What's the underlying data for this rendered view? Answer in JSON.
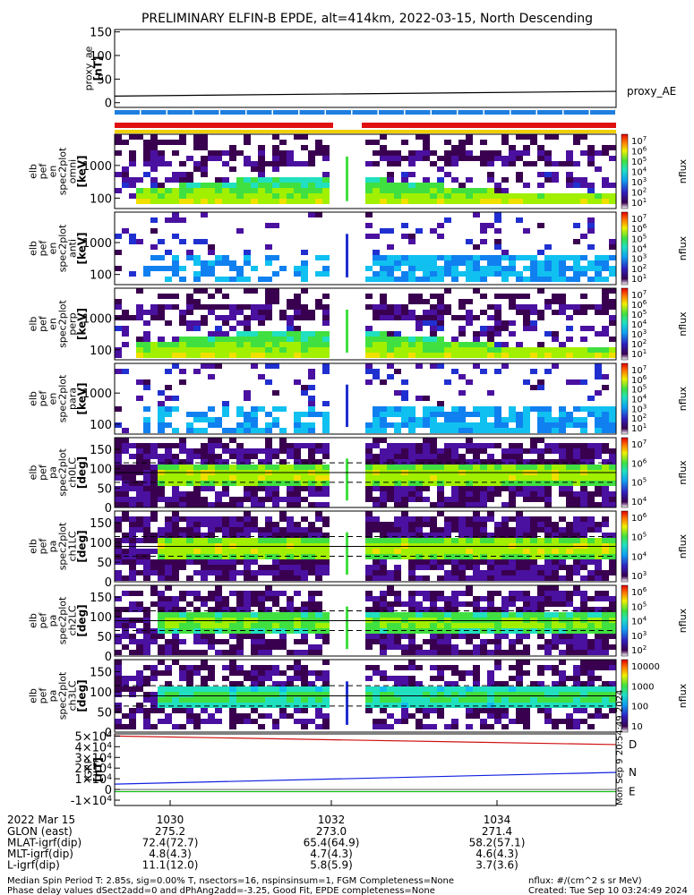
{
  "title": "PRELIMINARY ELFIN-B EPDE, alt=414km, 2022-03-15, North Descending",
  "chart_data": [
    {
      "type": "line",
      "panel": "proxy_ae",
      "ylabel_lines": [
        "proxy_ae",
        "[nT]"
      ],
      "yticks": [
        "150",
        "100",
        "50",
        "0"
      ],
      "ylim": [
        -10,
        155
      ],
      "x": [
        1029,
        1035.8
      ],
      "series": [
        {
          "name": "proxy_AE",
          "values": [
            14,
            24
          ],
          "color": "#000000"
        }
      ]
    },
    {
      "type": "heatmap",
      "panel": "en-omni",
      "ylabel_lines": [
        "elb",
        "pef",
        "en",
        "spec2plot",
        "omni",
        "[keV]"
      ],
      "yticks": [
        "1000",
        "100"
      ],
      "zlabel": "nflux",
      "cbar_ticks": [
        "10^7",
        "10^6",
        "10^5",
        "10^4",
        "10^3",
        "10^2",
        "10^1"
      ],
      "intensity": "high",
      "shape": "omni"
    },
    {
      "type": "heatmap",
      "panel": "en-anti",
      "ylabel_lines": [
        "elb",
        "pef",
        "en",
        "spec2plot",
        "anti",
        "[keV]"
      ],
      "yticks": [
        "1000",
        "100"
      ],
      "zlabel": "nflux",
      "cbar_ticks": [
        "10^7",
        "10^6",
        "10^5",
        "10^4",
        "10^3",
        "10^2",
        "10^1"
      ],
      "intensity": "low",
      "shape": "flat"
    },
    {
      "type": "heatmap",
      "panel": "en-perp",
      "ylabel_lines": [
        "elb",
        "pef",
        "en",
        "spec2plot",
        "perp",
        "[keV]"
      ],
      "yticks": [
        "1000",
        "100"
      ],
      "zlabel": "nflux",
      "cbar_ticks": [
        "10^7",
        "10^6",
        "10^5",
        "10^4",
        "10^3",
        "10^2",
        "10^1"
      ],
      "intensity": "high",
      "shape": "omni"
    },
    {
      "type": "heatmap",
      "panel": "en-para",
      "ylabel_lines": [
        "elb",
        "pef",
        "en",
        "spec2plot",
        "para",
        "[keV]"
      ],
      "yticks": [
        "1000",
        "100"
      ],
      "zlabel": "nflux",
      "cbar_ticks": [
        "10^7",
        "10^6",
        "10^5",
        "10^4",
        "10^3",
        "10^2",
        "10^1"
      ],
      "intensity": "low",
      "shape": "flat"
    },
    {
      "type": "heatmap",
      "panel": "pa-ch0",
      "ylabel_lines": [
        "elb",
        "pef",
        "pa",
        "spec2plot",
        "ch0LC",
        "[deg]"
      ],
      "yticks": [
        "150",
        "100",
        "50",
        "0"
      ],
      "zlabel": "nflux",
      "cbar_ticks": [
        "10^7",
        "10^6",
        "10^5",
        "10^4"
      ],
      "intensity": "high",
      "shape": "pa"
    },
    {
      "type": "heatmap",
      "panel": "pa-ch1",
      "ylabel_lines": [
        "elb",
        "pef",
        "pa",
        "spec2plot",
        "ch1LC",
        "[deg]"
      ],
      "yticks": [
        "150",
        "100",
        "50",
        "0"
      ],
      "zlabel": "nflux",
      "cbar_ticks": [
        "10^6",
        "10^5",
        "10^4",
        "10^3"
      ],
      "intensity": "high",
      "shape": "pa"
    },
    {
      "type": "heatmap",
      "panel": "pa-ch2",
      "ylabel_lines": [
        "elb",
        "pef",
        "pa",
        "spec2plot",
        "ch2LC",
        "[deg]"
      ],
      "yticks": [
        "150",
        "100",
        "50",
        "0"
      ],
      "zlabel": "nflux",
      "cbar_ticks": [
        "10^6",
        "10^5",
        "10^4",
        "10^3",
        "10^2"
      ],
      "intensity": "mid",
      "shape": "pa"
    },
    {
      "type": "heatmap",
      "panel": "pa-ch3",
      "ylabel_lines": [
        "elb",
        "pef",
        "pa",
        "spec2plot",
        "ch3LC",
        "[deg]"
      ],
      "yticks": [
        "150",
        "100",
        "50",
        "0"
      ],
      "zlabel": "nflux",
      "cbar_ticks": [
        "10000",
        "1000",
        "100",
        "10"
      ],
      "intensity": "low",
      "shape": "pa"
    },
    {
      "type": "line",
      "panel": "igrf",
      "ylabel_lines": [
        "IGRF",
        "[nT]"
      ],
      "yticks": [
        "5x10^4",
        "4x10^4",
        "3x10^4",
        "2x10^4",
        "1x10^4",
        "0",
        "-1x10^4"
      ],
      "ylim": [
        -15000,
        52000
      ],
      "x": [
        1029,
        1035.8
      ],
      "series": [
        {
          "name": "D",
          "values": [
            50000,
            42000
          ],
          "color": "#d01010"
        },
        {
          "name": "N",
          "values": [
            5000,
            16000
          ],
          "color": "#1020e0"
        },
        {
          "name": "E",
          "values": [
            -2000,
            -2000
          ],
          "color": "#10c010"
        }
      ]
    }
  ],
  "orbit_table": {
    "date_label": "2022 Mar 15",
    "time_ticks": [
      "1030",
      "1032",
      "1034"
    ],
    "rows": [
      {
        "label": "GLON (east)",
        "values": [
          "275.2",
          "273.0",
          "271.4"
        ]
      },
      {
        "label": "MLAT-igrf(dip)",
        "values": [
          "72.4(72.7)",
          "65.4(64.9)",
          "58.2(57.1)"
        ]
      },
      {
        "label": "MLT-igrf(dip)",
        "values": [
          "4.8(4.3)",
          "4.7(4.3)",
          "4.6(4.3)"
        ]
      },
      {
        "label": "L-igrf(dip)",
        "values": [
          "11.1(12.0)",
          "5.8(5.9)",
          "3.7(3.6)"
        ]
      }
    ]
  },
  "footer": {
    "line1": "Median Spin Period T: 2.85s, sig=0.00% T, nsectors=16, nspinsinsum=1, FGM Completeness=None",
    "line2": "Phase delay values dSect2add=0 and dPhAng2add=-3.25, Good Fit, EPDE completeness=None",
    "units": "nflux: #/(cm^2 s sr MeV)",
    "created": "Created: Tue Sep 10 03:24:49 2024",
    "side_stamp": "Mon Sep 9 20:54:49 2024"
  },
  "colors": {
    "blue_bar": "#1f7fe0",
    "red_bar": "#e01010",
    "yellow_bar": "#f0d000"
  }
}
